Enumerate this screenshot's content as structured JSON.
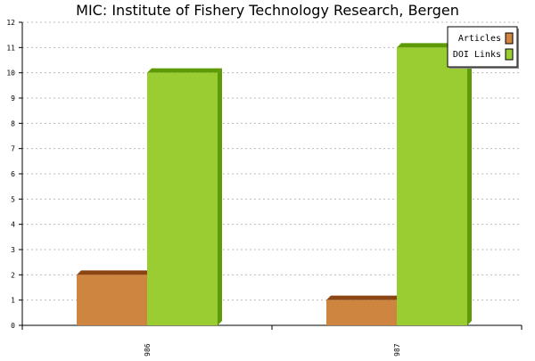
{
  "chart_data": {
    "type": "bar",
    "title": "MIC: Institute of Fishery Technology Research, Bergen",
    "categories": [
      "1986",
      "1987"
    ],
    "series": [
      {
        "name": "Articles",
        "values": [
          2,
          1
        ],
        "color": "#cd853f",
        "top_color": "#8b4513"
      },
      {
        "name": "DOI Links",
        "values": [
          10,
          11
        ],
        "color": "#9acd32",
        "top_color": "#5e9a06"
      }
    ],
    "ylim": [
      0,
      12
    ],
    "yticks": [
      0,
      1,
      2,
      3,
      4,
      5,
      6,
      7,
      8,
      9,
      10,
      11,
      12
    ],
    "grid": true,
    "legend_position": "top-right",
    "xlabel": "",
    "ylabel": ""
  }
}
